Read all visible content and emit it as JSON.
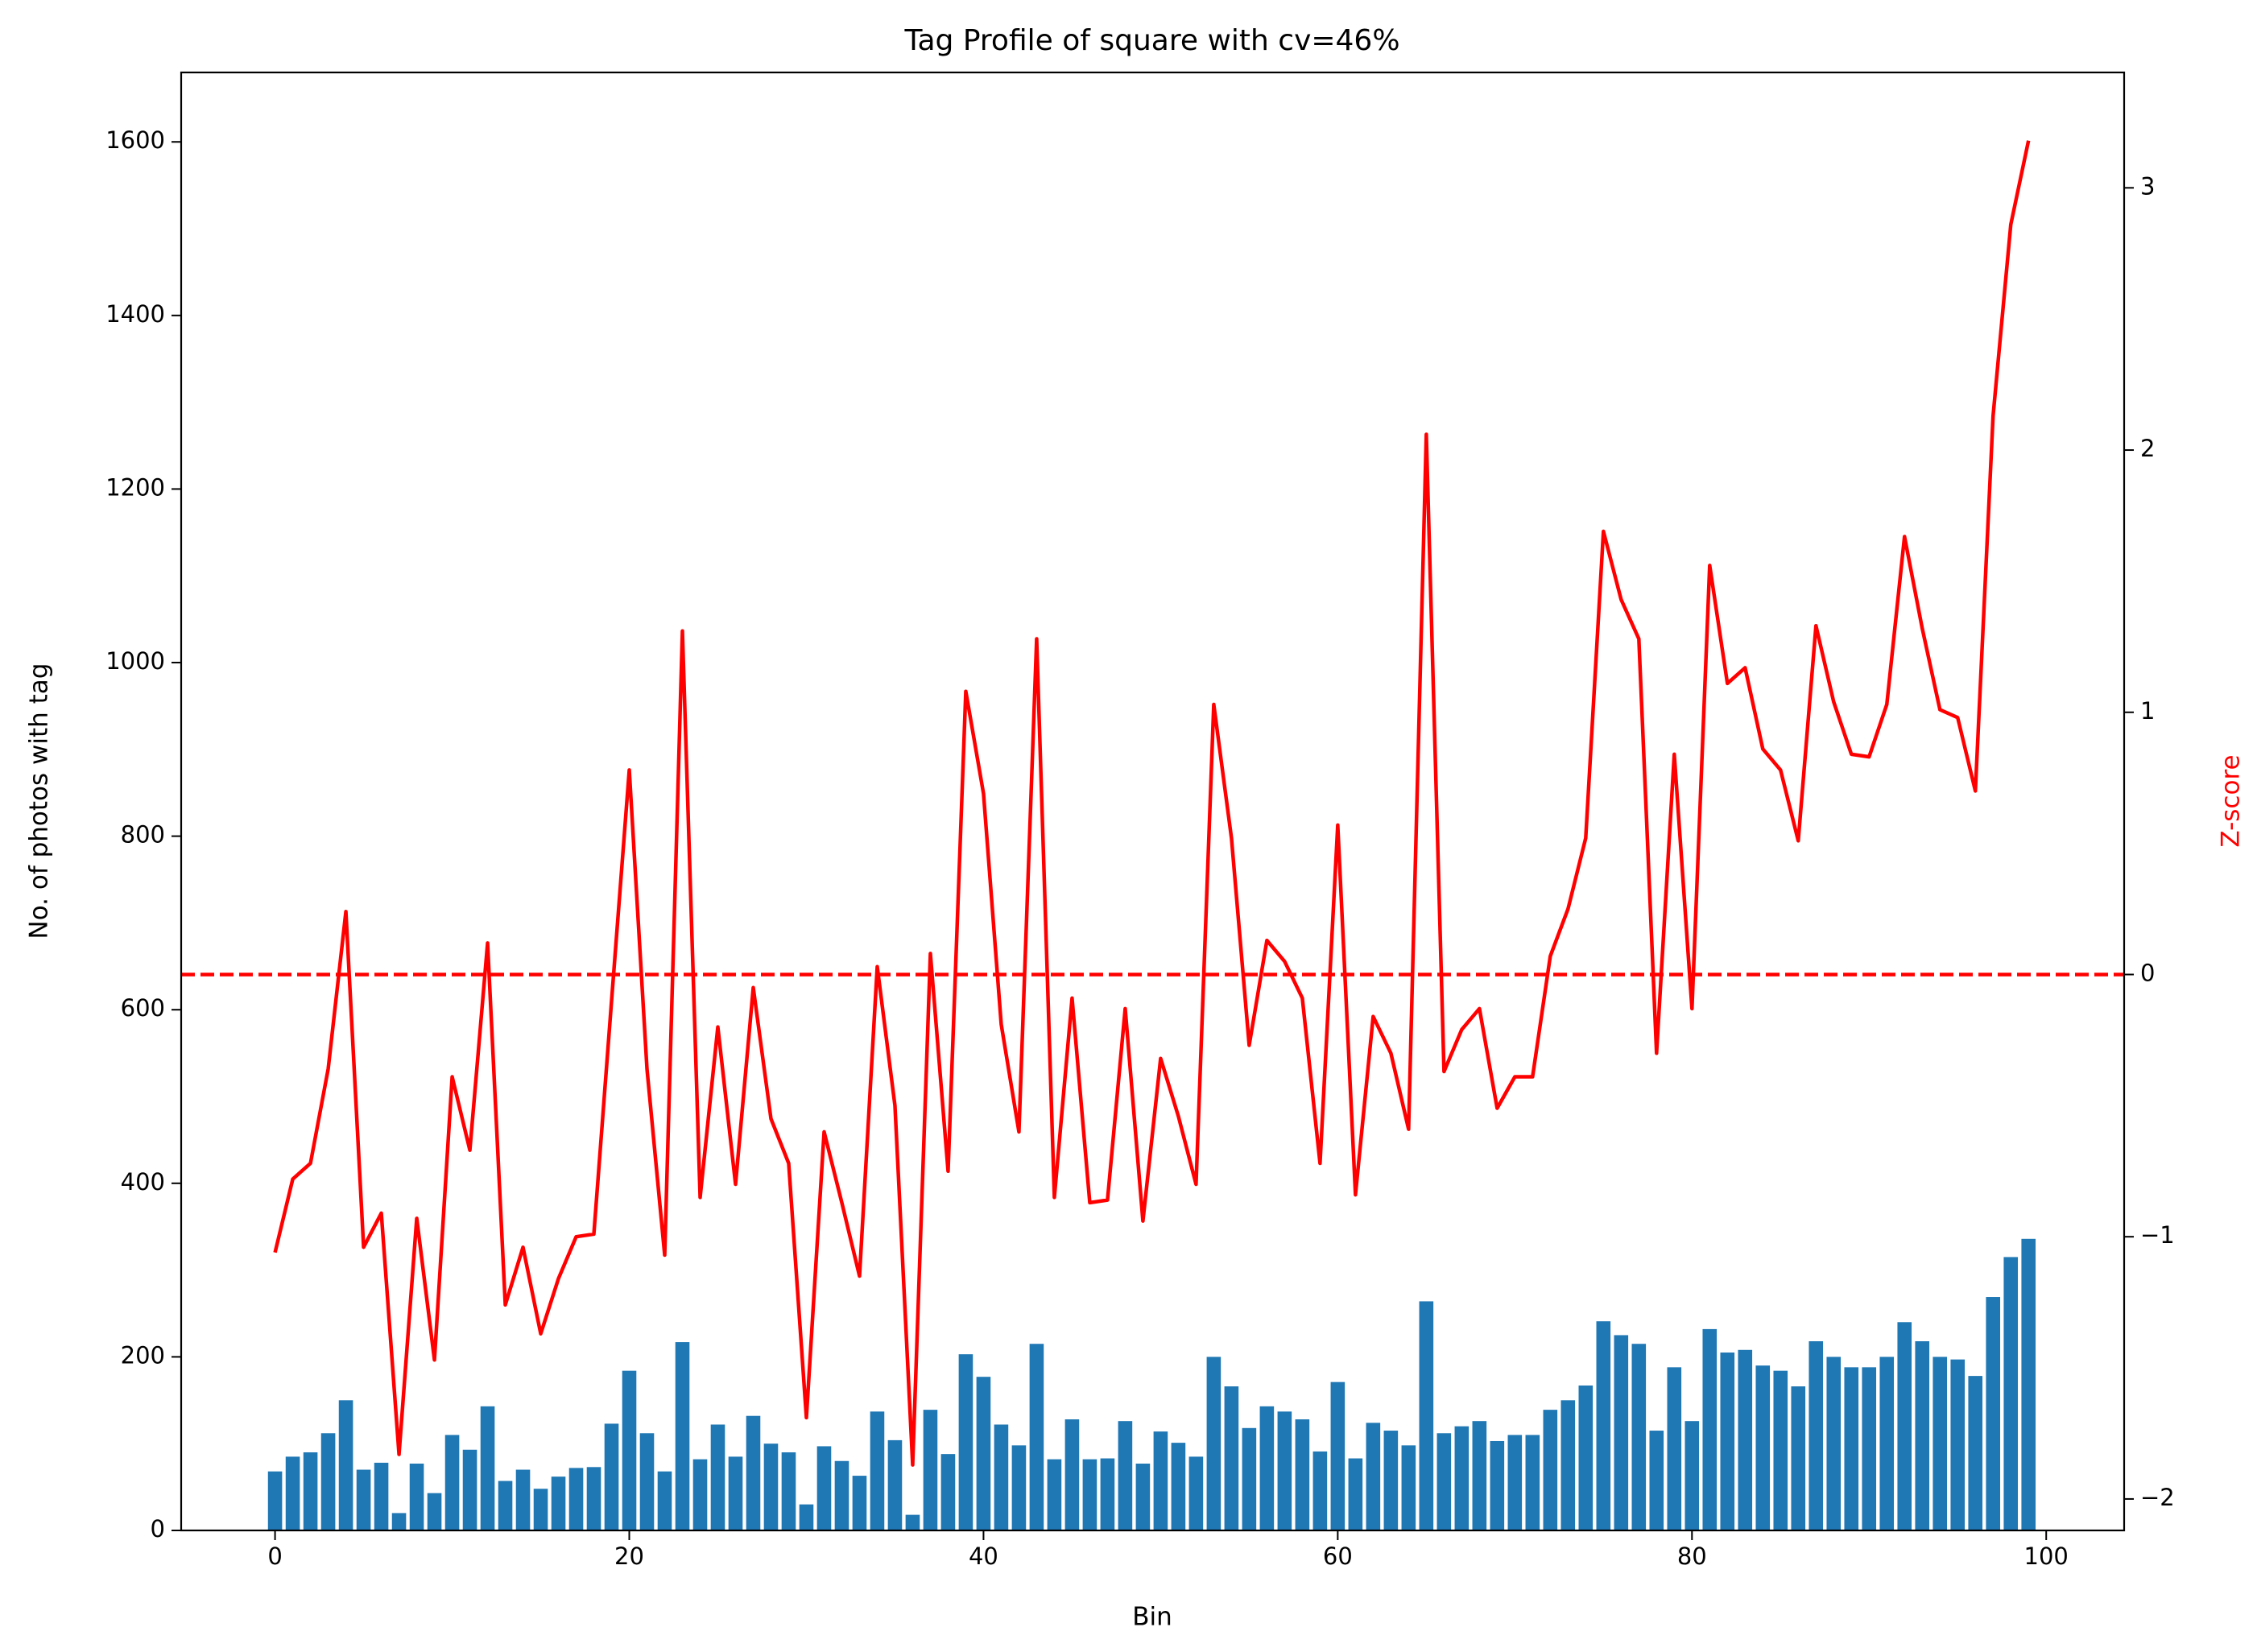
{
  "chart_data": {
    "type": "bar",
    "title": "Tag Profile of square with cv=46%",
    "x_label": "Bin",
    "y_label": "No. of photos with tag",
    "y2_label": "Z-score",
    "y2_label_color": "#ff0000",
    "x": [
      0,
      1,
      2,
      3,
      4,
      5,
      6,
      7,
      8,
      9,
      10,
      11,
      12,
      13,
      14,
      15,
      16,
      17,
      18,
      19,
      20,
      21,
      22,
      23,
      24,
      25,
      26,
      27,
      28,
      29,
      30,
      31,
      32,
      33,
      34,
      35,
      36,
      37,
      38,
      39,
      40,
      41,
      42,
      43,
      44,
      45,
      46,
      47,
      48,
      49,
      50,
      51,
      52,
      53,
      54,
      55,
      56,
      57,
      58,
      59,
      60,
      61,
      62,
      63,
      64,
      65,
      66,
      67,
      68,
      69,
      70,
      71,
      72,
      73,
      74,
      75,
      76,
      77,
      78,
      79,
      80,
      81,
      82,
      83,
      84,
      85,
      86,
      87,
      88,
      89,
      90,
      91,
      92,
      93,
      94,
      95,
      96,
      97,
      98,
      99
    ],
    "series": [
      {
        "type": "bar",
        "color": "#1f77b4",
        "width": 0.8,
        "values": [
          68,
          85,
          90,
          112,
          150,
          70,
          78,
          20,
          77,
          43,
          110,
          93,
          143,
          57,
          70,
          48,
          62,
          72,
          73,
          123,
          184,
          112,
          68,
          217,
          82,
          122,
          85,
          132,
          100,
          90,
          30,
          97,
          80,
          63,
          137,
          104,
          18,
          139,
          88,
          203,
          177,
          122,
          98,
          215,
          82,
          128,
          82,
          83,
          126,
          77,
          114,
          101,
          85,
          200,
          166,
          118,
          143,
          137,
          128,
          91,
          171,
          83,
          124,
          115,
          98,
          264,
          112,
          120,
          126,
          103,
          110,
          110,
          139,
          150,
          167,
          241,
          225,
          215,
          115,
          188,
          126,
          232,
          205,
          208,
          190,
          184,
          166,
          218,
          200,
          188,
          188,
          200,
          240,
          218,
          200,
          197,
          178,
          269,
          315,
          336
        ]
      },
      {
        "type": "line",
        "color": "#ff0000",
        "axis": "y2",
        "values": [
          -1.06,
          -0.78,
          -0.72,
          -0.36,
          0.24,
          -1.04,
          -0.91,
          -1.83,
          -0.93,
          -1.47,
          -0.39,
          -0.67,
          0.12,
          -1.26,
          -1.04,
          -1.37,
          -1.16,
          -1.0,
          -0.99,
          -0.1,
          0.78,
          -0.36,
          -1.07,
          1.31,
          -0.85,
          -0.2,
          -0.8,
          -0.05,
          -0.55,
          -0.72,
          -1.69,
          -0.6,
          -0.87,
          -1.15,
          0.03,
          -0.5,
          -1.87,
          0.08,
          -0.75,
          1.08,
          0.69,
          -0.19,
          -0.6,
          1.28,
          -0.85,
          -0.09,
          -0.87,
          -0.86,
          -0.13,
          -0.94,
          -0.32,
          -0.54,
          -0.8,
          1.03,
          0.52,
          -0.27,
          0.13,
          0.05,
          -0.09,
          -0.72,
          0.57,
          -0.84,
          -0.16,
          -0.3,
          -0.59,
          2.06,
          -0.37,
          -0.21,
          -0.13,
          -0.51,
          -0.39,
          -0.39,
          0.07,
          0.25,
          0.52,
          1.69,
          1.43,
          1.28,
          -0.3,
          0.84,
          -0.13,
          1.56,
          1.11,
          1.17,
          0.86,
          0.78,
          0.51,
          1.33,
          1.04,
          0.84,
          0.83,
          1.03,
          1.67,
          1.32,
          1.01,
          0.98,
          0.7,
          2.13,
          2.86,
          3.18
        ]
      }
    ],
    "hlines": [
      {
        "value": 0,
        "axis": "y2",
        "color": "#ff0000",
        "dashed": true
      }
    ],
    "xlim": [
      -5.3,
      104.4
    ],
    "xticks": [
      0,
      20,
      40,
      60,
      80,
      100
    ],
    "ylim": [
      0,
      1680
    ],
    "yticks": [
      0,
      200,
      400,
      600,
      800,
      1000,
      1200,
      1400,
      1600
    ],
    "y2lim": [
      -2.12,
      3.44
    ],
    "y2ticks": [
      {
        "value": -2,
        "label": "−2"
      },
      {
        "value": -1,
        "label": "−1"
      },
      0,
      1,
      2,
      3
    ]
  }
}
